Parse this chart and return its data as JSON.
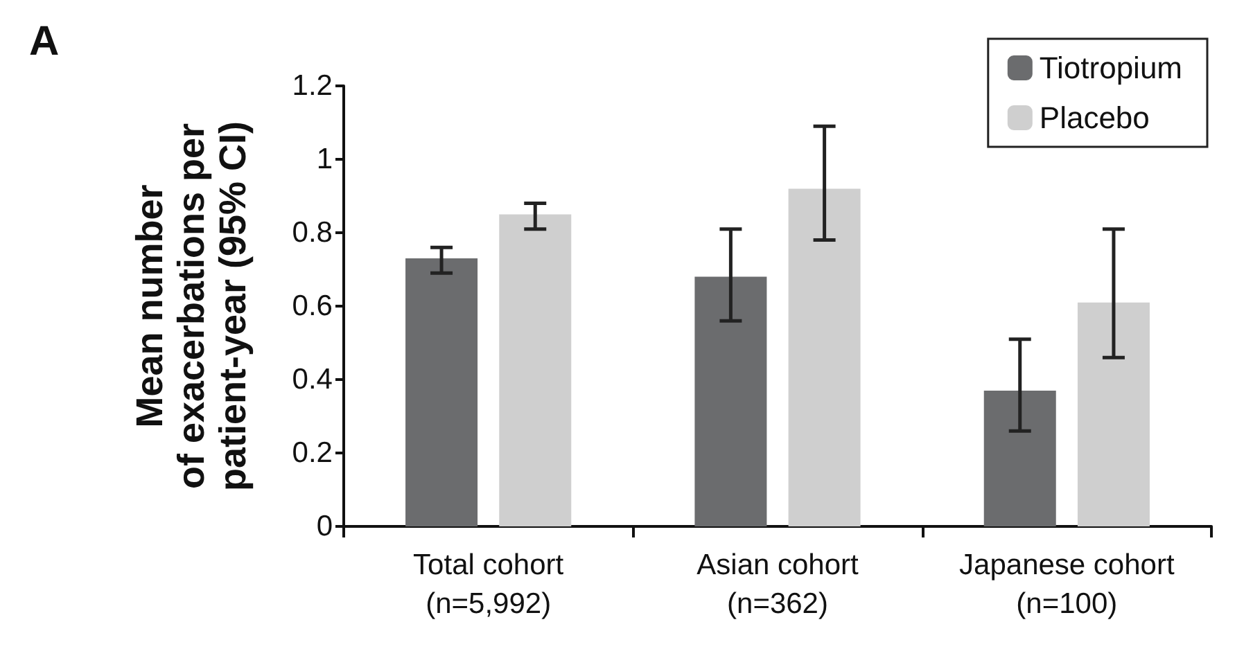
{
  "chart_data": {
    "type": "bar",
    "title": "A",
    "ylabel": "Mean number\nof exacerbations per\npatient-year (95% CI)",
    "categories": [
      "Total cohort\n(n=5,992)",
      "Asian cohort\n(n=362)",
      "Japanese cohort\n(n=100)"
    ],
    "series": [
      {
        "name": "Tiotropium",
        "color": "#6b6c6e",
        "values": [
          0.73,
          0.68,
          0.37
        ],
        "errors": [
          [
            0.69,
            0.76
          ],
          [
            0.56,
            0.81
          ],
          [
            0.26,
            0.51
          ]
        ]
      },
      {
        "name": "Placebo",
        "color": "#cfcfcf",
        "values": [
          0.85,
          0.92,
          0.61
        ],
        "errors": [
          [
            0.81,
            0.88
          ],
          [
            0.78,
            1.09
          ],
          [
            0.46,
            0.81
          ]
        ]
      }
    ],
    "ylim": [
      0,
      1.2
    ],
    "yticks": [
      0,
      0.2,
      0.4,
      0.6,
      0.8,
      1,
      1.2
    ],
    "grid": false,
    "legend": "top right"
  }
}
